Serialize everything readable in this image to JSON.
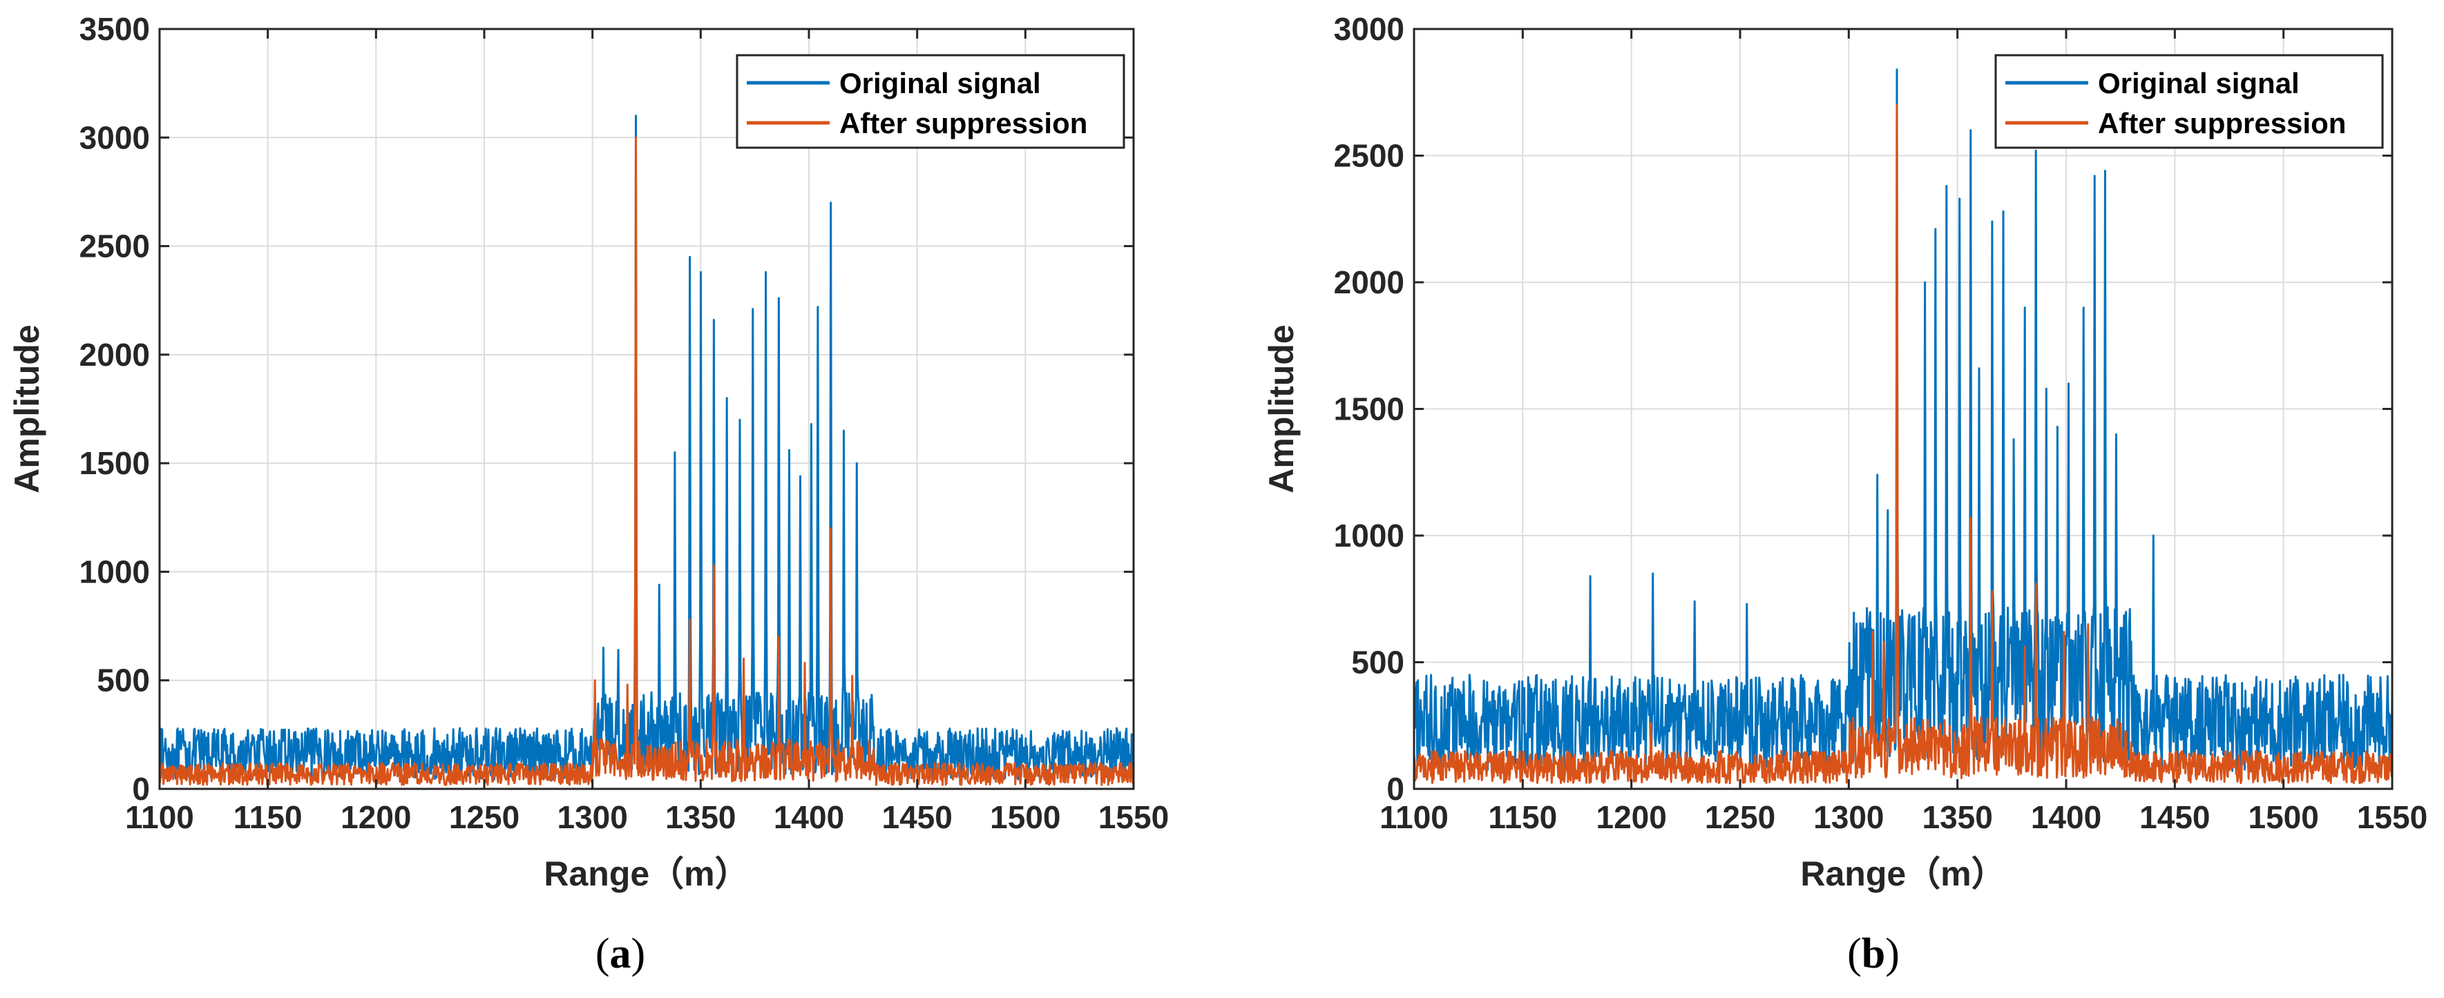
{
  "colors": {
    "original": "#0072BD",
    "suppressed": "#D95319",
    "grid": "#DCDCDC",
    "axis": "#262626"
  },
  "chart_data": [
    {
      "type": "line",
      "panel_label": "a",
      "xlabel": "Range（m）",
      "ylabel": "Amplitude",
      "xlim": [
        1100,
        1550
      ],
      "ylim": [
        0,
        3500
      ],
      "xticks": [
        1100,
        1150,
        1200,
        1250,
        1300,
        1350,
        1400,
        1450,
        1500,
        1550
      ],
      "yticks": [
        0,
        500,
        1000,
        1500,
        2000,
        2500,
        3000,
        3500
      ],
      "grid": true,
      "legend_position": "top-right",
      "series": [
        {
          "name": "Original signal",
          "color_key": "original",
          "noise_range": [
            1100,
            1300
          ],
          "noise_level": 280,
          "peaks": [
            {
              "x": 1320,
              "y": 3100
            },
            {
              "x": 1305,
              "y": 650
            },
            {
              "x": 1312,
              "y": 640
            },
            {
              "x": 1331,
              "y": 940
            },
            {
              "x": 1338,
              "y": 1550
            },
            {
              "x": 1345,
              "y": 2450
            },
            {
              "x": 1350,
              "y": 2380
            },
            {
              "x": 1356,
              "y": 2160
            },
            {
              "x": 1362,
              "y": 1800
            },
            {
              "x": 1368,
              "y": 1700
            },
            {
              "x": 1374,
              "y": 2210
            },
            {
              "x": 1380,
              "y": 2380
            },
            {
              "x": 1386,
              "y": 2260
            },
            {
              "x": 1391,
              "y": 1560
            },
            {
              "x": 1396,
              "y": 1440
            },
            {
              "x": 1401,
              "y": 1680
            },
            {
              "x": 1404,
              "y": 2220
            },
            {
              "x": 1410,
              "y": 2700
            },
            {
              "x": 1416,
              "y": 1650
            },
            {
              "x": 1422,
              "y": 1500
            }
          ]
        },
        {
          "name": "After suppression",
          "color_key": "suppressed",
          "noise_level": 120,
          "peaks": [
            {
              "x": 1320,
              "y": 3000
            },
            {
              "x": 1301,
              "y": 500
            },
            {
              "x": 1316,
              "y": 480
            },
            {
              "x": 1345,
              "y": 780
            },
            {
              "x": 1356,
              "y": 1030
            },
            {
              "x": 1370,
              "y": 600
            },
            {
              "x": 1386,
              "y": 700
            },
            {
              "x": 1398,
              "y": 580
            },
            {
              "x": 1410,
              "y": 1200
            },
            {
              "x": 1420,
              "y": 520
            }
          ]
        }
      ]
    },
    {
      "type": "line",
      "panel_label": "b",
      "xlabel": "Range（m）",
      "ylabel": "Amplitude",
      "xlim": [
        1100,
        1550
      ],
      "ylim": [
        0,
        3000
      ],
      "xticks": [
        1100,
        1150,
        1200,
        1250,
        1300,
        1350,
        1400,
        1450,
        1500,
        1550
      ],
      "yticks": [
        0,
        500,
        1000,
        1500,
        2000,
        2500,
        3000
      ],
      "grid": true,
      "legend_position": "top-right",
      "series": [
        {
          "name": "Original signal",
          "color_key": "original",
          "noise_range": [
            1100,
            1300
          ],
          "noise_level": 450,
          "peaks": [
            {
              "x": 1322,
              "y": 2840
            },
            {
              "x": 1313,
              "y": 1240
            },
            {
              "x": 1318,
              "y": 1100
            },
            {
              "x": 1181,
              "y": 840
            },
            {
              "x": 1210,
              "y": 850
            },
            {
              "x": 1229,
              "y": 740
            },
            {
              "x": 1253,
              "y": 730
            },
            {
              "x": 1335,
              "y": 2000
            },
            {
              "x": 1340,
              "y": 2210
            },
            {
              "x": 1345,
              "y": 2380
            },
            {
              "x": 1351,
              "y": 2330
            },
            {
              "x": 1356,
              "y": 2600
            },
            {
              "x": 1360,
              "y": 1660
            },
            {
              "x": 1366,
              "y": 2240
            },
            {
              "x": 1371,
              "y": 2280
            },
            {
              "x": 1376,
              "y": 1380
            },
            {
              "x": 1381,
              "y": 1900
            },
            {
              "x": 1386,
              "y": 2520
            },
            {
              "x": 1391,
              "y": 1580
            },
            {
              "x": 1396,
              "y": 1430
            },
            {
              "x": 1401,
              "y": 1600
            },
            {
              "x": 1408,
              "y": 1900
            },
            {
              "x": 1413,
              "y": 2420
            },
            {
              "x": 1418,
              "y": 2440
            },
            {
              "x": 1423,
              "y": 1400
            },
            {
              "x": 1440,
              "y": 1000
            }
          ]
        },
        {
          "name": "After suppression",
          "color_key": "suppressed",
          "noise_level": 150,
          "peaks": [
            {
              "x": 1322,
              "y": 2700
            },
            {
              "x": 1311,
              "y": 620
            },
            {
              "x": 1316,
              "y": 580
            },
            {
              "x": 1356,
              "y": 1070
            },
            {
              "x": 1366,
              "y": 780
            },
            {
              "x": 1381,
              "y": 560
            },
            {
              "x": 1386,
              "y": 810
            },
            {
              "x": 1399,
              "y": 620
            },
            {
              "x": 1410,
              "y": 650
            },
            {
              "x": 1209,
              "y": 260
            }
          ]
        }
      ]
    }
  ]
}
